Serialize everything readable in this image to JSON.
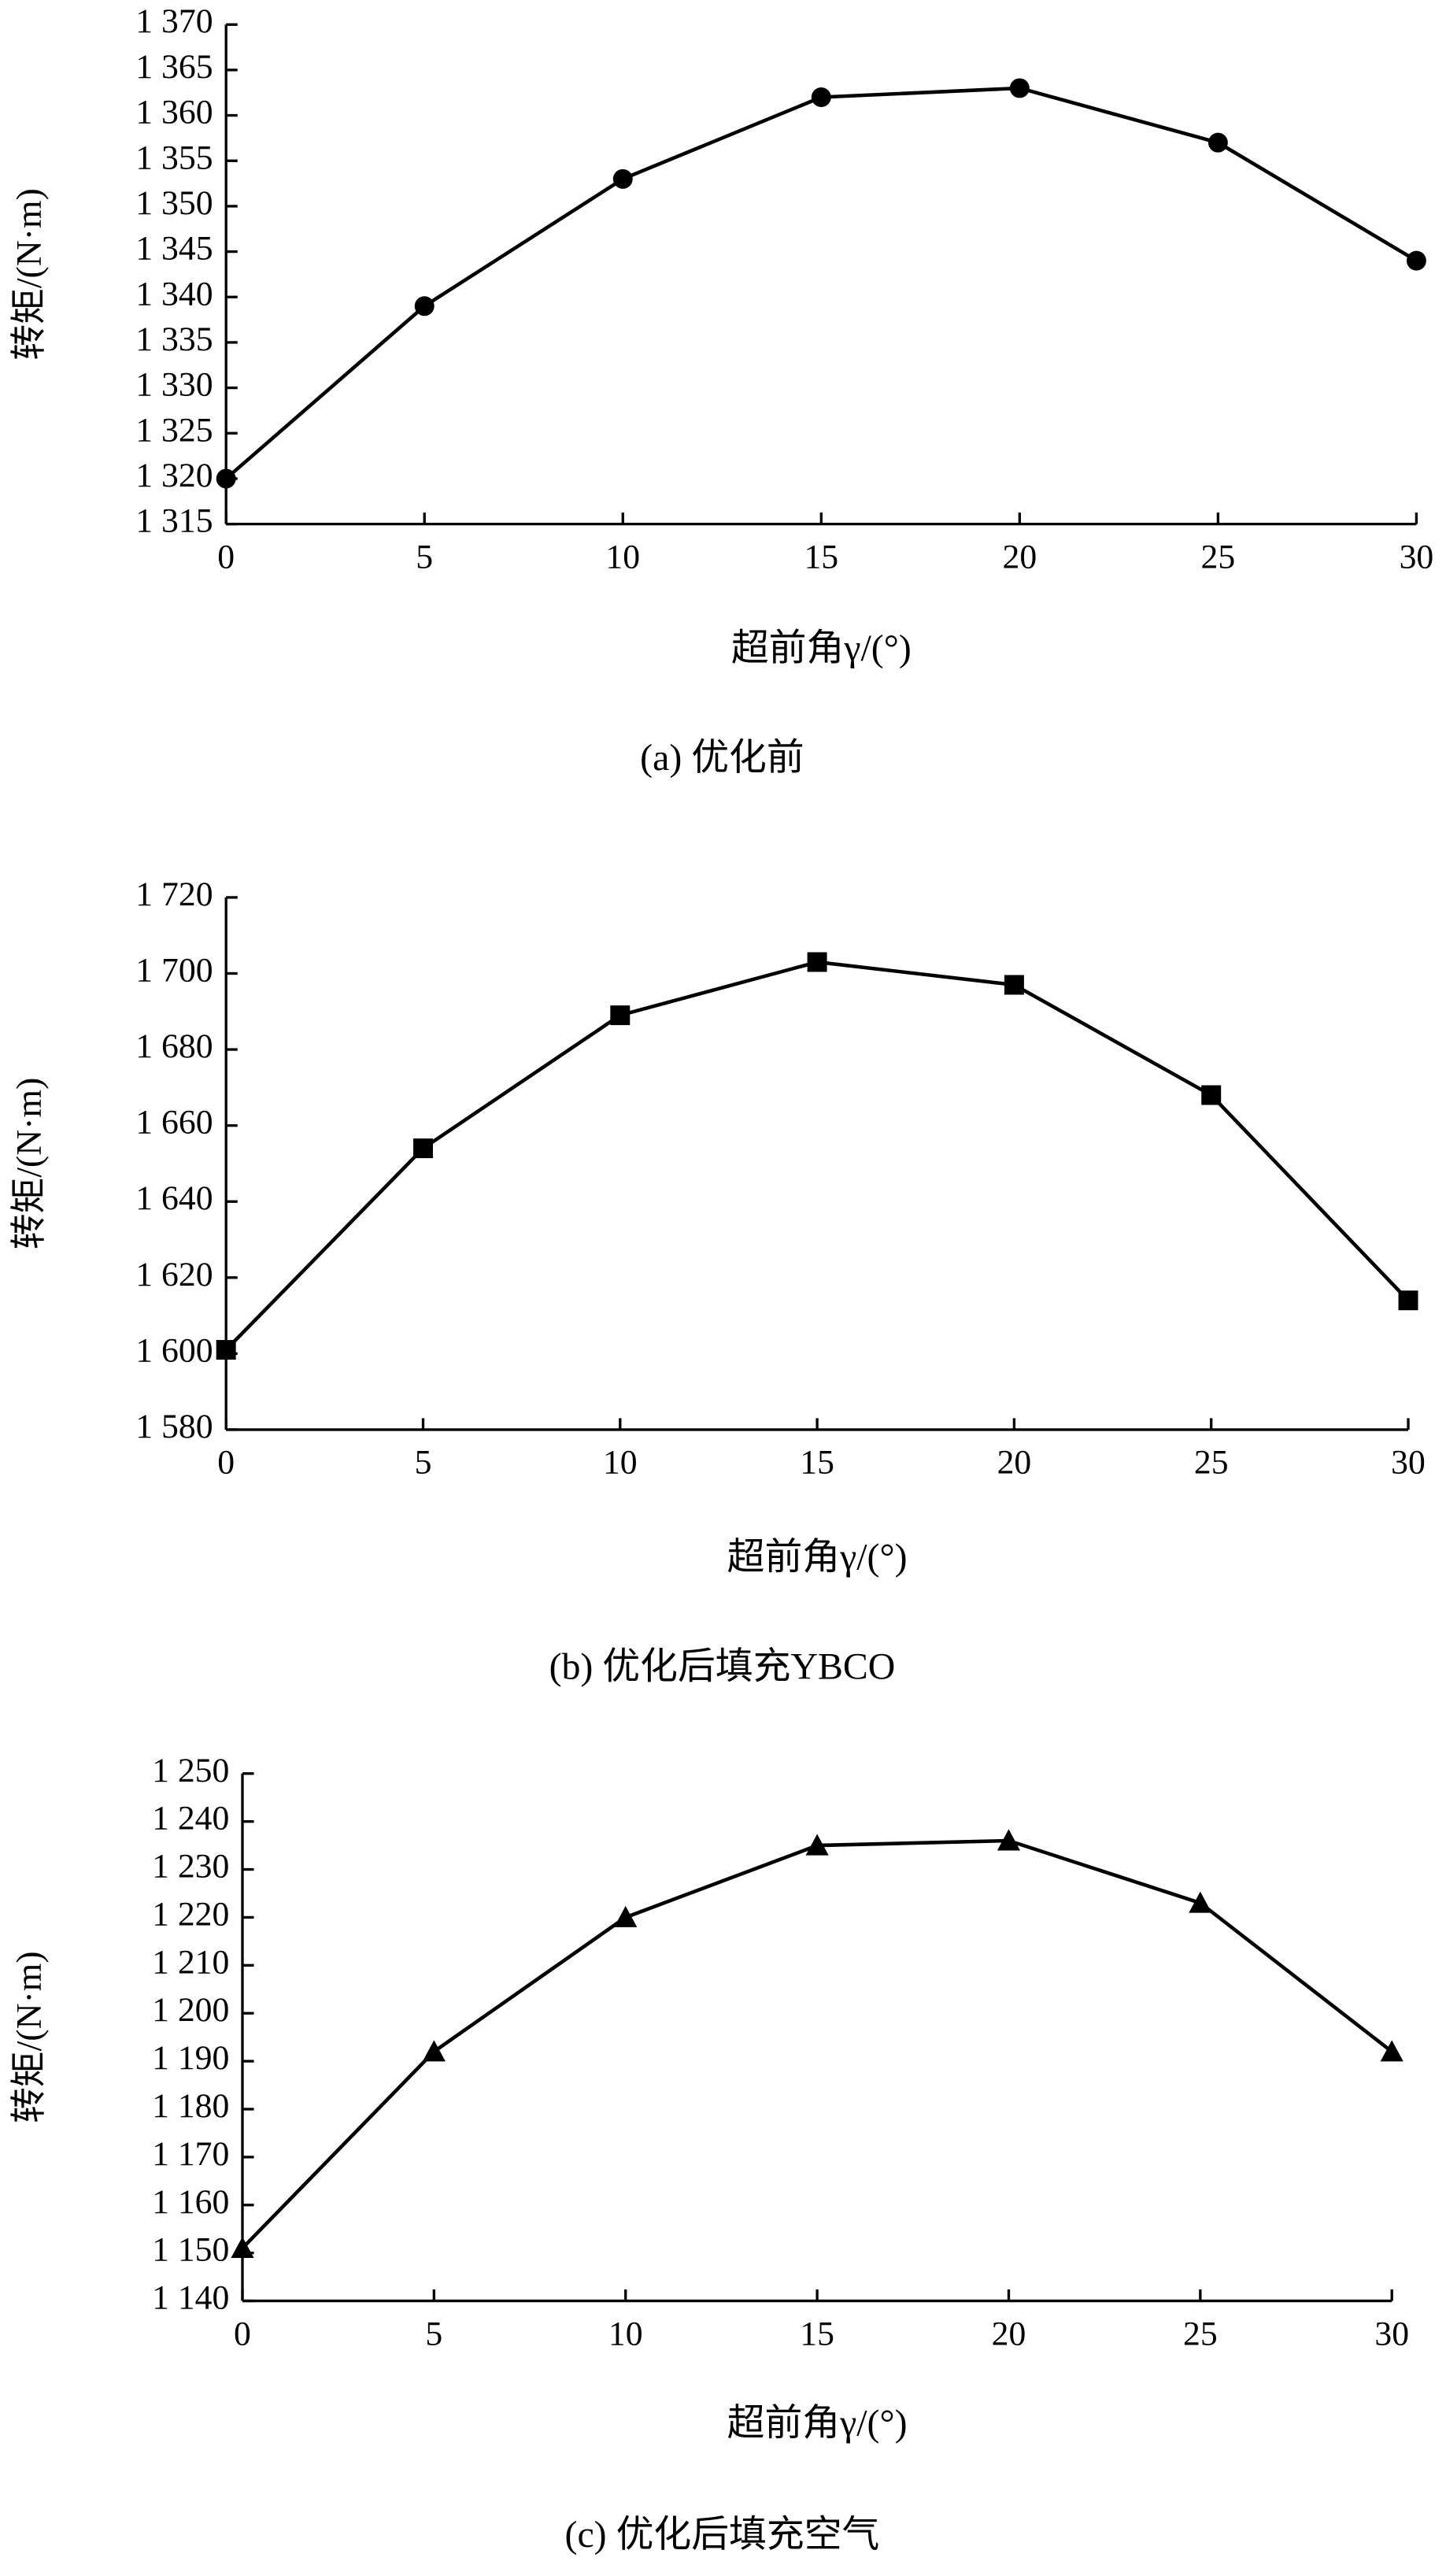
{
  "chart_data": [
    {
      "type": "line",
      "caption": "(a) 优化前",
      "x_label": "超前角γ/(°)",
      "y_label": "转矩/(N·m)",
      "x": [
        0,
        5,
        10,
        15,
        20,
        25,
        30
      ],
      "values": [
        1320,
        1339,
        1353,
        1362,
        1363,
        1357,
        1344
      ],
      "color": "#000000",
      "marker": "circle",
      "xlim": [
        0,
        30
      ],
      "xticks": [
        0,
        5,
        10,
        15,
        20,
        25,
        30
      ],
      "ylim": [
        1315,
        1370
      ],
      "yticks": [
        {
          "value": 1315,
          "label": "1 315"
        },
        {
          "value": 1320,
          "label": "1 320"
        },
        {
          "value": 1325,
          "label": "1 325"
        },
        {
          "value": 1330,
          "label": "1 330"
        },
        {
          "value": 1335,
          "label": "1 335"
        },
        {
          "value": 1340,
          "label": "1 340"
        },
        {
          "value": 1345,
          "label": "1 345"
        },
        {
          "value": 1350,
          "label": "1 350"
        },
        {
          "value": 1355,
          "label": "1 355"
        },
        {
          "value": 1360,
          "label": "1 360"
        },
        {
          "value": 1365,
          "label": "1 365"
        },
        {
          "value": 1370,
          "label": "1 370"
        }
      ]
    },
    {
      "type": "line",
      "caption": "(b) 优化后填充YBCO",
      "x_label": "超前角γ/(°)",
      "y_label": "转矩/(N·m)",
      "x": [
        0,
        5,
        10,
        15,
        20,
        25,
        30
      ],
      "values": [
        1601,
        1654,
        1689,
        1703,
        1697,
        1668,
        1614
      ],
      "color": "#000000",
      "marker": "square",
      "xlim": [
        0,
        30
      ],
      "xticks": [
        0,
        5,
        10,
        15,
        20,
        25,
        30
      ],
      "ylim": [
        1580,
        1720
      ],
      "yticks": [
        {
          "value": 1580,
          "label": "1 580"
        },
        {
          "value": 1600,
          "label": "1 600"
        },
        {
          "value": 1620,
          "label": "1 620"
        },
        {
          "value": 1640,
          "label": "1 640"
        },
        {
          "value": 1660,
          "label": "1 660"
        },
        {
          "value": 1680,
          "label": "1 680"
        },
        {
          "value": 1700,
          "label": "1 700"
        },
        {
          "value": 1720,
          "label": "1 720"
        }
      ]
    },
    {
      "type": "line",
      "caption": "(c) 优化后填充空气",
      "x_label": "超前角γ/(°)",
      "y_label": "转矩/(N·m)",
      "x": [
        0,
        5,
        10,
        15,
        20,
        25,
        30
      ],
      "values": [
        1151,
        1192,
        1220,
        1235,
        1236,
        1223,
        1192
      ],
      "color": "#000000",
      "marker": "triangle",
      "xlim": [
        0,
        30
      ],
      "xticks": [
        0,
        5,
        10,
        15,
        20,
        25,
        30
      ],
      "ylim": [
        1140,
        1250
      ],
      "yticks": [
        {
          "value": 1140,
          "label": "1 140"
        },
        {
          "value": 1150,
          "label": "1 150"
        },
        {
          "value": 1160,
          "label": "1 160"
        },
        {
          "value": 1170,
          "label": "1 170"
        },
        {
          "value": 1180,
          "label": "1 180"
        },
        {
          "value": 1190,
          "label": "1 190"
        },
        {
          "value": 1200,
          "label": "1 200"
        },
        {
          "value": 1210,
          "label": "1 210"
        },
        {
          "value": 1220,
          "label": "1 220"
        },
        {
          "value": 1230,
          "label": "1 230"
        },
        {
          "value": 1240,
          "label": "1 240"
        },
        {
          "value": 1250,
          "label": "1 250"
        }
      ]
    }
  ]
}
